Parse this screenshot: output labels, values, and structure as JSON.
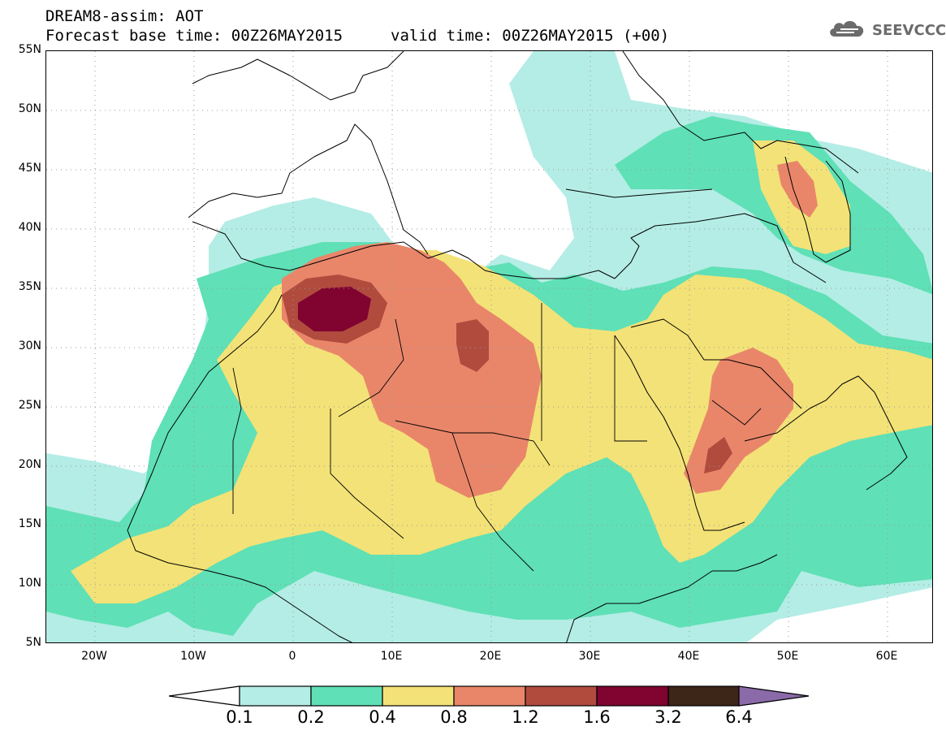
{
  "header": {
    "title_line1": "DREAM8-assim: AOT",
    "title_line2_base": "Forecast base time: 00Z26MAY2015",
    "title_line2_valid": "valid time: 00Z26MAY2015 (+00)",
    "logo_text": "SEEVCCC",
    "logo_icon": "cloud-icon"
  },
  "map": {
    "projection": "lat-lon",
    "lon_range": [
      -25,
      65
    ],
    "lat_range": [
      5,
      55
    ],
    "grid": "dotted",
    "lat_ticks": [
      "55N",
      "50N",
      "45N",
      "40N",
      "35N",
      "30N",
      "25N",
      "20N",
      "15N",
      "10N",
      "5N"
    ],
    "lon_ticks": [
      "20W",
      "10W",
      "0",
      "10E",
      "20E",
      "30E",
      "40E",
      "50E",
      "60E"
    ],
    "background": "#ffffff",
    "coastline_color": "#000000"
  },
  "legend": {
    "thresholds": [
      "0.1",
      "0.2",
      "0.4",
      "0.8",
      "1.2",
      "1.6",
      "3.2",
      "6.4"
    ],
    "colors": [
      "#b4ede5",
      "#5fe0b6",
      "#f3e277",
      "#e9866a",
      "#b04b3e",
      "#800330",
      "#3d2517",
      "#8a6aa8"
    ],
    "low_color": "#ffffff"
  }
}
